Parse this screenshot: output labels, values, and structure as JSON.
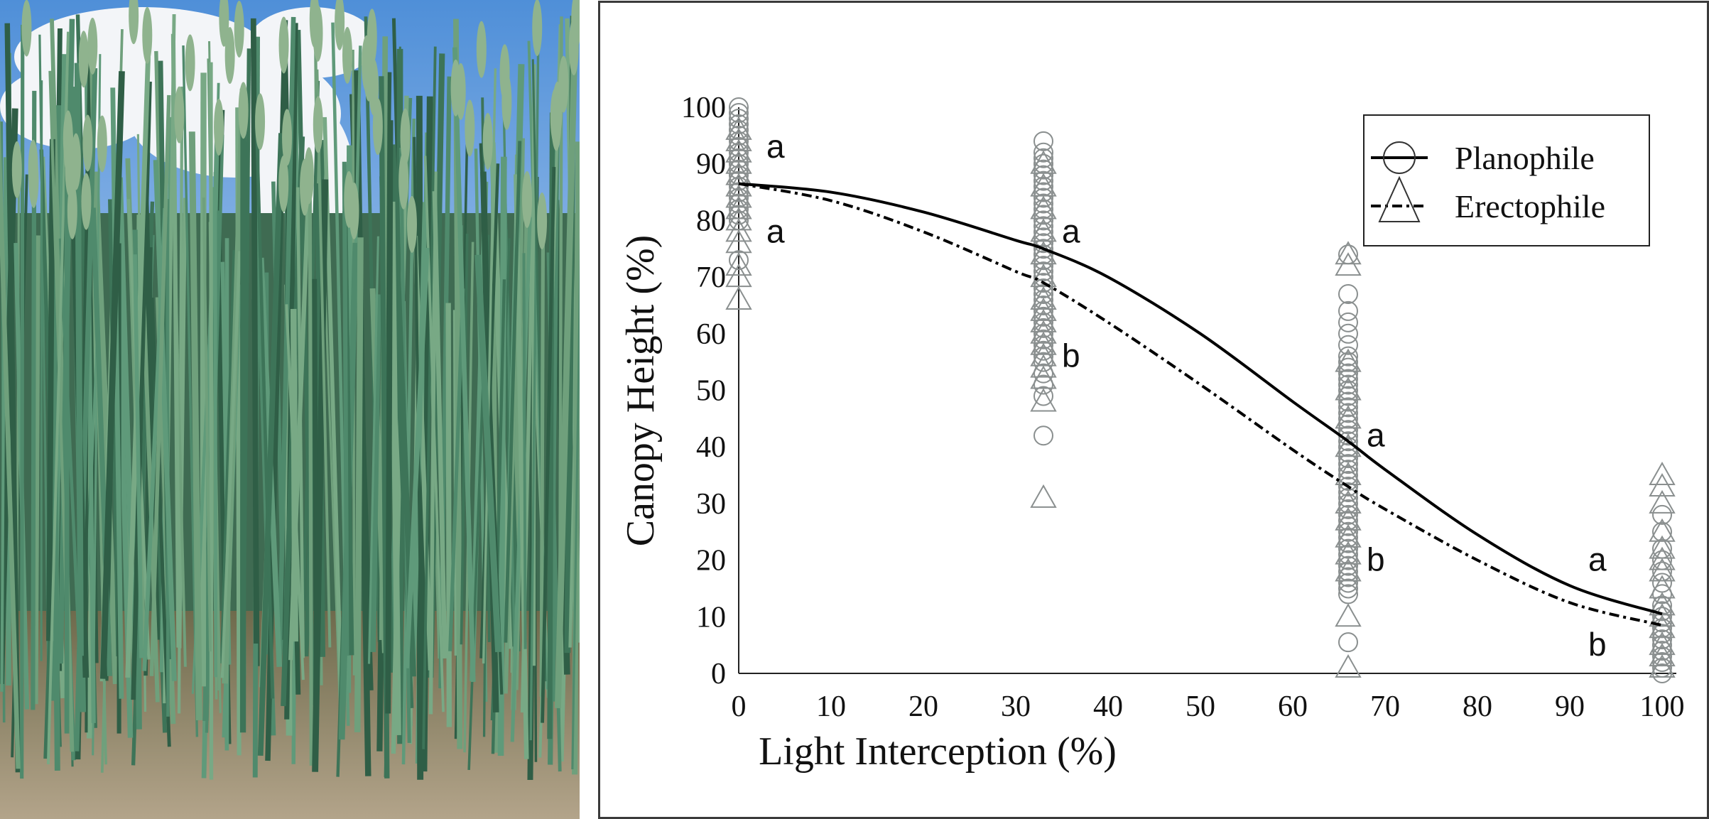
{
  "photo": {
    "description_icon": "wheat-canopy-photo"
  },
  "chart_data": {
    "type": "scatter",
    "xlabel": "Light Interception (%)",
    "ylabel": "Canopy Height (%)",
    "xlim": [
      0,
      100
    ],
    "ylim": [
      0,
      100
    ],
    "xticks": [
      "0",
      "10",
      "20",
      "30",
      "40",
      "50",
      "60",
      "70",
      "80",
      "90",
      "100"
    ],
    "yticks": [
      "0",
      "10",
      "20",
      "30",
      "40",
      "50",
      "60",
      "70",
      "80",
      "90",
      "100"
    ],
    "grid": false,
    "legend_position": "top-right",
    "marker_color": "#8a8f8f",
    "series": [
      {
        "name": "Planophile",
        "marker": "circle",
        "line_style": "solid",
        "points": {
          "0": [
            100,
            99,
            98,
            97,
            96,
            95,
            94,
            93,
            92,
            91,
            90,
            89,
            88,
            87,
            86,
            85,
            84,
            83,
            82,
            81,
            80,
            73
          ],
          "33": [
            94,
            92,
            91,
            90,
            89,
            88,
            87,
            86,
            85,
            84,
            83,
            82,
            81,
            80,
            79,
            78,
            77,
            76,
            75,
            74,
            73,
            72,
            71,
            70,
            69,
            68,
            67,
            66,
            65,
            64,
            63,
            62,
            61,
            60,
            59,
            58,
            57,
            56,
            55,
            53,
            51,
            49,
            42
          ],
          "66": [
            74,
            67,
            64,
            62,
            60,
            58,
            56,
            55,
            54,
            53,
            52,
            51,
            50,
            49,
            48,
            47,
            46,
            45,
            44,
            43,
            42,
            41,
            40,
            39,
            38,
            37,
            36,
            35,
            34,
            33,
            32,
            31,
            30,
            29,
            28,
            27,
            26,
            25,
            24,
            23,
            22,
            21,
            20,
            19,
            18,
            17,
            16,
            15,
            14,
            5.5
          ],
          "100": [
            28,
            25,
            22,
            20,
            18,
            16,
            14,
            12,
            11,
            10,
            9,
            8,
            7,
            6,
            5,
            4,
            3,
            2,
            1,
            0
          ]
        },
        "curve": [
          [
            0,
            86.5
          ],
          [
            10,
            85
          ],
          [
            20,
            81.5
          ],
          [
            30,
            76.5
          ],
          [
            33,
            75
          ],
          [
            40,
            70
          ],
          [
            50,
            60
          ],
          [
            60,
            48
          ],
          [
            66,
            41
          ],
          [
            70,
            36
          ],
          [
            80,
            24.5
          ],
          [
            90,
            15.5
          ],
          [
            100,
            10.5
          ]
        ]
      },
      {
        "name": "Erectophile",
        "marker": "triangle",
        "line_style": "dash-dot",
        "points": {
          "0": [
            96,
            94,
            92,
            90,
            88,
            86,
            84,
            82,
            80,
            78,
            76,
            72,
            70,
            66
          ],
          "33": [
            90,
            86,
            82,
            78,
            74,
            70,
            66,
            64,
            62,
            60,
            58,
            56,
            54,
            52,
            48,
            31
          ],
          "66": [
            74,
            72,
            55,
            50,
            45,
            40,
            35,
            30,
            27,
            24,
            21,
            18,
            10,
            1
          ],
          "100": [
            35,
            33,
            30,
            25,
            22,
            20,
            18,
            15,
            12,
            10,
            8,
            5,
            3,
            1
          ]
        },
        "curve": [
          [
            0,
            86.5
          ],
          [
            10,
            83.5
          ],
          [
            20,
            78
          ],
          [
            30,
            71
          ],
          [
            33,
            69
          ],
          [
            40,
            62
          ],
          [
            50,
            51
          ],
          [
            60,
            39.5
          ],
          [
            66,
            33
          ],
          [
            70,
            29
          ],
          [
            80,
            20
          ],
          [
            90,
            12.5
          ],
          [
            100,
            8.5
          ]
        ]
      }
    ],
    "annotations": [
      {
        "text": "a",
        "x": 3,
        "y": 93
      },
      {
        "text": "a",
        "x": 3,
        "y": 78
      },
      {
        "text": "a",
        "x": 35,
        "y": 78
      },
      {
        "text": "b",
        "x": 35,
        "y": 56
      },
      {
        "text": "a",
        "x": 68,
        "y": 42
      },
      {
        "text": "b",
        "x": 68,
        "y": 20
      },
      {
        "text": "a",
        "x": 92,
        "y": 20
      },
      {
        "text": "b",
        "x": 92,
        "y": 5
      }
    ]
  }
}
